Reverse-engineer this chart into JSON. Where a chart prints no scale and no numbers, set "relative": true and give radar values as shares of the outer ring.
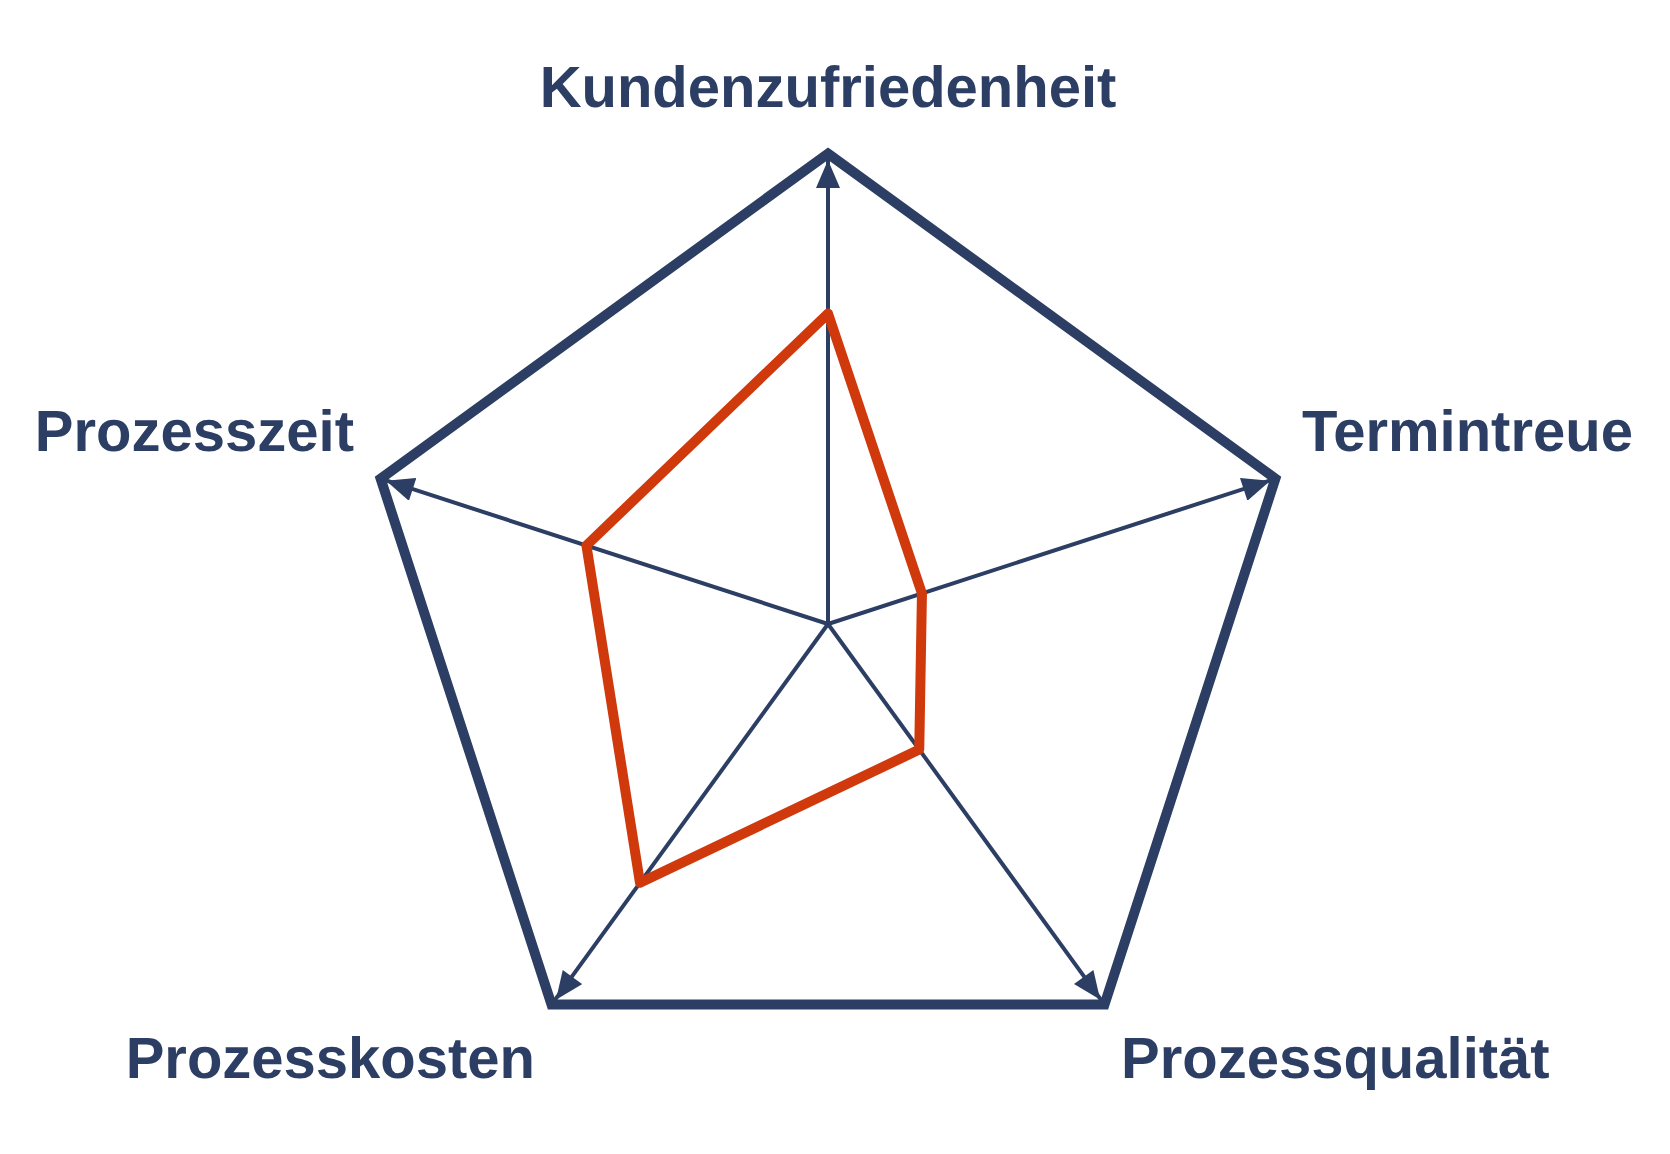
{
  "chart_data": {
    "type": "radar",
    "relative": true,
    "categories": [
      "Kundenzufriedenheit",
      "Termintreue",
      "Prozessqualität",
      "Prozesskosten",
      "Prozesszeit"
    ],
    "series": [
      {
        "color": "#d0390c",
        "values": [
          0.66,
          0.21,
          0.33,
          0.68,
          0.54
        ]
      }
    ],
    "grid": true,
    "legend": false,
    "marker": "none",
    "line_style": "solid"
  }
}
